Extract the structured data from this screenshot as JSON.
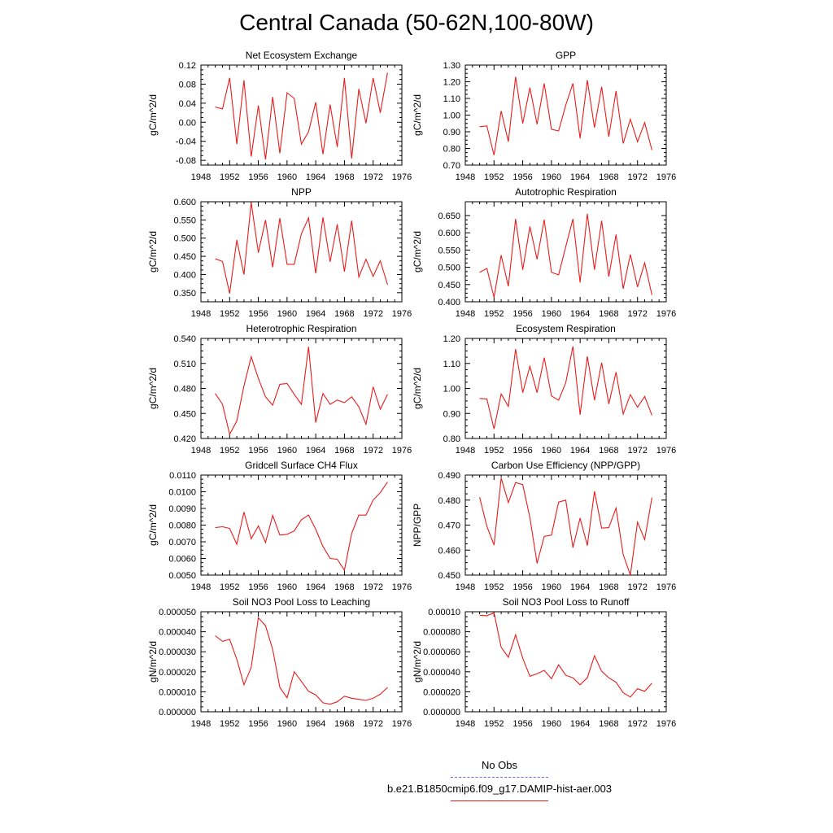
{
  "title": "Central Canada (50-62N,100-80W)",
  "legend": {
    "obs_label": "No Obs",
    "obs_color": "#6a6adf",
    "model_label": "b.e21.B1850cmip6.f09_g17.DAMIP-hist-aer.003",
    "model_color": "#e81c1c"
  },
  "chart_data": [
    {
      "type": "line",
      "title": "Net Ecosystem Exchange",
      "xlabel": "",
      "ylabel": "gC/m^2/d",
      "xlim": [
        1948,
        1976
      ],
      "ylim": [
        -0.09,
        0.12
      ],
      "x_ticks": [
        "1948",
        "1952",
        "1956",
        "1960",
        "1964",
        "1968",
        "1972",
        "1976"
      ],
      "y_ticks": [
        "-0.08",
        "-0.04",
        "0.00",
        "0.04",
        "0.08",
        "0.12"
      ],
      "series": [
        {
          "x": [
            1950,
            1951,
            1952,
            1953,
            1954,
            1955,
            1956,
            1957,
            1958,
            1959,
            1960,
            1961,
            1962,
            1963,
            1964,
            1965,
            1966,
            1967,
            1968,
            1969,
            1970,
            1971,
            1972,
            1973,
            1974
          ],
          "values": [
            0.032,
            0.028,
            0.093,
            -0.046,
            0.088,
            -0.072,
            0.035,
            -0.078,
            0.053,
            -0.065,
            0.062,
            0.05,
            -0.046,
            -0.02,
            0.042,
            -0.067,
            0.037,
            -0.052,
            0.093,
            -0.076,
            0.07,
            -0.002,
            0.093,
            0.02,
            0.104
          ]
        }
      ]
    },
    {
      "type": "line",
      "title": "GPP",
      "xlabel": "",
      "ylabel": "gC/m^2/d",
      "xlim": [
        1948,
        1976
      ],
      "ylim": [
        0.7,
        1.3
      ],
      "x_ticks": [
        "1948",
        "1952",
        "1956",
        "1960",
        "1964",
        "1968",
        "1972",
        "1976"
      ],
      "y_ticks": [
        "0.70",
        "0.80",
        "0.90",
        "1.00",
        "1.10",
        "1.20",
        "1.30"
      ],
      "series": [
        {
          "x": [
            1950,
            1951,
            1952,
            1953,
            1954,
            1955,
            1956,
            1957,
            1958,
            1959,
            1960,
            1961,
            1962,
            1963,
            1964,
            1965,
            1966,
            1967,
            1968,
            1969,
            1970,
            1971,
            1972,
            1973,
            1974
          ],
          "values": [
            0.93,
            0.935,
            0.76,
            1.025,
            0.84,
            1.23,
            0.95,
            1.165,
            0.945,
            1.19,
            0.915,
            0.905,
            1.06,
            1.19,
            0.86,
            1.21,
            0.925,
            1.17,
            0.87,
            1.145,
            0.83,
            0.975,
            0.84,
            0.955,
            0.79
          ]
        }
      ]
    },
    {
      "type": "line",
      "title": "NPP",
      "xlabel": "",
      "ylabel": "gC/m^2/d",
      "xlim": [
        1948,
        1976
      ],
      "ylim": [
        0.325,
        0.6
      ],
      "x_ticks": [
        "1948",
        "1952",
        "1956",
        "1960",
        "1964",
        "1968",
        "1972",
        "1976"
      ],
      "y_ticks": [
        "0.350",
        "0.400",
        "0.450",
        "0.500",
        "0.550",
        "0.600"
      ],
      "series": [
        {
          "x": [
            1950,
            1951,
            1952,
            1953,
            1954,
            1955,
            1956,
            1957,
            1958,
            1959,
            1960,
            1961,
            1962,
            1963,
            1964,
            1965,
            1966,
            1967,
            1968,
            1969,
            1970,
            1971,
            1972,
            1973,
            1974
          ],
          "values": [
            0.443,
            0.436,
            0.348,
            0.495,
            0.4,
            0.598,
            0.46,
            0.55,
            0.42,
            0.555,
            0.428,
            0.428,
            0.512,
            0.556,
            0.403,
            0.557,
            0.435,
            0.538,
            0.408,
            0.548,
            0.393,
            0.442,
            0.395,
            0.438,
            0.372
          ]
        }
      ]
    },
    {
      "type": "line",
      "title": "Autotrophic Respiration",
      "xlabel": "",
      "ylabel": "gC/m^2/d",
      "xlim": [
        1948,
        1976
      ],
      "ylim": [
        0.4,
        0.69
      ],
      "x_ticks": [
        "1948",
        "1952",
        "1956",
        "1960",
        "1964",
        "1968",
        "1972",
        "1976"
      ],
      "y_ticks": [
        "0.400",
        "0.450",
        "0.500",
        "0.550",
        "0.600",
        "0.650"
      ],
      "series": [
        {
          "x": [
            1950,
            1951,
            1952,
            1953,
            1954,
            1955,
            1956,
            1957,
            1958,
            1959,
            1960,
            1961,
            1962,
            1963,
            1964,
            1965,
            1966,
            1967,
            1968,
            1969,
            1970,
            1971,
            1972,
            1973,
            1974
          ],
          "values": [
            0.485,
            0.497,
            0.413,
            0.535,
            0.445,
            0.64,
            0.493,
            0.618,
            0.523,
            0.638,
            0.485,
            0.478,
            0.56,
            0.64,
            0.456,
            0.655,
            0.493,
            0.635,
            0.473,
            0.595,
            0.438,
            0.537,
            0.443,
            0.513,
            0.42
          ]
        }
      ]
    },
    {
      "type": "line",
      "title": "Heterotrophic Respiration",
      "xlabel": "",
      "ylabel": "gC/m^2/d",
      "xlim": [
        1948,
        1976
      ],
      "ylim": [
        0.42,
        0.54
      ],
      "x_ticks": [
        "1948",
        "1952",
        "1956",
        "1960",
        "1964",
        "1968",
        "1972",
        "1976"
      ],
      "y_ticks": [
        "0.420",
        "0.450",
        "0.480",
        "0.510",
        "0.540"
      ],
      "series": [
        {
          "x": [
            1950,
            1951,
            1952,
            1953,
            1954,
            1955,
            1956,
            1957,
            1958,
            1959,
            1960,
            1961,
            1962,
            1963,
            1964,
            1965,
            1966,
            1967,
            1968,
            1969,
            1970,
            1971,
            1972,
            1973,
            1974
          ],
          "values": [
            0.474,
            0.461,
            0.425,
            0.441,
            0.483,
            0.518,
            0.492,
            0.47,
            0.46,
            0.485,
            0.486,
            0.473,
            0.461,
            0.53,
            0.439,
            0.474,
            0.461,
            0.466,
            0.463,
            0.47,
            0.458,
            0.437,
            0.482,
            0.455,
            0.473
          ]
        }
      ]
    },
    {
      "type": "line",
      "title": "Ecosystem Respiration",
      "xlabel": "",
      "ylabel": "gC/m^2/d",
      "xlim": [
        1948,
        1976
      ],
      "ylim": [
        0.8,
        1.2
      ],
      "x_ticks": [
        "1948",
        "1952",
        "1956",
        "1960",
        "1964",
        "1968",
        "1972",
        "1976"
      ],
      "y_ticks": [
        "0.80",
        "0.90",
        "1.00",
        "1.10",
        "1.20"
      ],
      "series": [
        {
          "x": [
            1950,
            1951,
            1952,
            1953,
            1954,
            1955,
            1956,
            1957,
            1958,
            1959,
            1960,
            1961,
            1962,
            1963,
            1964,
            1965,
            1966,
            1967,
            1968,
            1969,
            1970,
            1971,
            1972,
            1973,
            1974
          ],
          "values": [
            0.96,
            0.958,
            0.838,
            0.978,
            0.928,
            1.157,
            0.983,
            1.088,
            0.983,
            1.123,
            0.97,
            0.953,
            1.023,
            1.168,
            0.895,
            1.128,
            0.953,
            1.103,
            0.938,
            1.065,
            0.898,
            0.975,
            0.925,
            0.968,
            0.893
          ]
        }
      ]
    },
    {
      "type": "line",
      "title": "Gridcell Surface CH4 Flux",
      "xlabel": "",
      "ylabel": "gC/m^2/d",
      "xlim": [
        1948,
        1976
      ],
      "ylim": [
        0.005,
        0.011
      ],
      "x_ticks": [
        "1948",
        "1952",
        "1956",
        "1960",
        "1964",
        "1968",
        "1972",
        "1976"
      ],
      "y_ticks": [
        "0.0050",
        "0.0060",
        "0.0070",
        "0.0080",
        "0.0090",
        "0.0100",
        "0.0110"
      ],
      "series": [
        {
          "x": [
            1950,
            1951,
            1952,
            1953,
            1954,
            1955,
            1956,
            1957,
            1958,
            1959,
            1960,
            1961,
            1962,
            1963,
            1964,
            1965,
            1966,
            1967,
            1968,
            1969,
            1970,
            1971,
            1972,
            1973,
            1974
          ],
          "values": [
            0.00785,
            0.0079,
            0.0078,
            0.00685,
            0.00878,
            0.00718,
            0.00795,
            0.00695,
            0.00858,
            0.0074,
            0.00745,
            0.00765,
            0.00832,
            0.0086,
            0.00775,
            0.00672,
            0.006,
            0.00595,
            0.0053,
            0.0075,
            0.0086,
            0.0086,
            0.0095,
            0.00995,
            0.01058
          ]
        }
      ]
    },
    {
      "type": "line",
      "title": "Carbon Use Efficiency (NPP/GPP)",
      "xlabel": "",
      "ylabel": "NPP/GPP",
      "xlim": [
        1948,
        1976
      ],
      "ylim": [
        0.45,
        0.49
      ],
      "x_ticks": [
        "1948",
        "1952",
        "1956",
        "1960",
        "1964",
        "1968",
        "1972",
        "1976"
      ],
      "y_ticks": [
        "0.450",
        "0.460",
        "0.470",
        "0.480",
        "0.490"
      ],
      "series": [
        {
          "x": [
            1950,
            1951,
            1952,
            1953,
            1954,
            1955,
            1956,
            1957,
            1958,
            1959,
            1960,
            1961,
            1962,
            1963,
            1964,
            1965,
            1966,
            1967,
            1968,
            1969,
            1970,
            1971,
            1972,
            1973,
            1974
          ],
          "values": [
            0.4812,
            0.4695,
            0.462,
            0.4888,
            0.479,
            0.487,
            0.4862,
            0.473,
            0.4547,
            0.4655,
            0.466,
            0.4792,
            0.48,
            0.461,
            0.4728,
            0.4618,
            0.4835,
            0.4688,
            0.469,
            0.4768,
            0.4582,
            0.45,
            0.4712,
            0.4642,
            0.481
          ]
        }
      ]
    },
    {
      "type": "line",
      "title": "Soil NO3 Pool Loss to Leaching",
      "xlabel": "",
      "ylabel": "gN/m^2/d",
      "xlim": [
        1948,
        1976
      ],
      "ylim": [
        0.0,
        5e-05
      ],
      "x_ticks": [
        "1948",
        "1952",
        "1956",
        "1960",
        "1964",
        "1968",
        "1972",
        "1976"
      ],
      "y_ticks": [
        "0.000000",
        "0.000010",
        "0.000020",
        "0.000030",
        "0.000040",
        "0.000050"
      ],
      "series": [
        {
          "x": [
            1950,
            1951,
            1952,
            1953,
            1954,
            1955,
            1956,
            1957,
            1958,
            1959,
            1960,
            1961,
            1962,
            1963,
            1964,
            1965,
            1966,
            1967,
            1968,
            1969,
            1970,
            1971,
            1972,
            1973,
            1974
          ],
          "values": [
            3.8e-05,
            3.52e-05,
            3.62e-05,
            2.62e-05,
            1.35e-05,
            2.22e-05,
            4.7e-05,
            4.3e-05,
            3.12e-05,
            1.22e-05,
            7e-06,
            2e-05,
            1.52e-05,
            1.02e-05,
            8.5e-06,
            4.5e-06,
            3.8e-06,
            5e-06,
            7.8e-06,
            6.8e-06,
            6.2e-06,
            5.7e-06,
            6.8e-06,
            8.8e-06,
            1.22e-05
          ]
        }
      ]
    },
    {
      "type": "line",
      "title": "Soil NO3 Pool Loss to Runoff",
      "xlabel": "",
      "ylabel": "gN/m^2/d",
      "xlim": [
        1948,
        1976
      ],
      "ylim": [
        0.0,
        0.0001
      ],
      "x_ticks": [
        "1948",
        "1952",
        "1956",
        "1960",
        "1964",
        "1968",
        "1972",
        "1976"
      ],
      "y_ticks": [
        "0.000000",
        "0.000020",
        "0.000040",
        "0.000060",
        "0.000080",
        "0.00010"
      ],
      "series": [
        {
          "x": [
            1950,
            1951,
            1952,
            1953,
            1954,
            1955,
            1956,
            1957,
            1958,
            1959,
            1960,
            1961,
            1962,
            1963,
            1964,
            1965,
            1966,
            1967,
            1968,
            1969,
            1970,
            1971,
            1972,
            1973,
            1974
          ],
          "values": [
            9.65e-05,
            9.6e-05,
            9.9e-05,
            6.45e-05,
            5.45e-05,
            7.68e-05,
            5.35e-05,
            3.55e-05,
            3.8e-05,
            4.15e-05,
            3.3e-05,
            4.7e-05,
            3.65e-05,
            3.4e-05,
            2.7e-05,
            3.4e-05,
            5.6e-05,
            4.05e-05,
            3.4e-05,
            2.95e-05,
            1.9e-05,
            1.48e-05,
            2.3e-05,
            2.05e-05,
            2.85e-05
          ]
        }
      ]
    }
  ]
}
